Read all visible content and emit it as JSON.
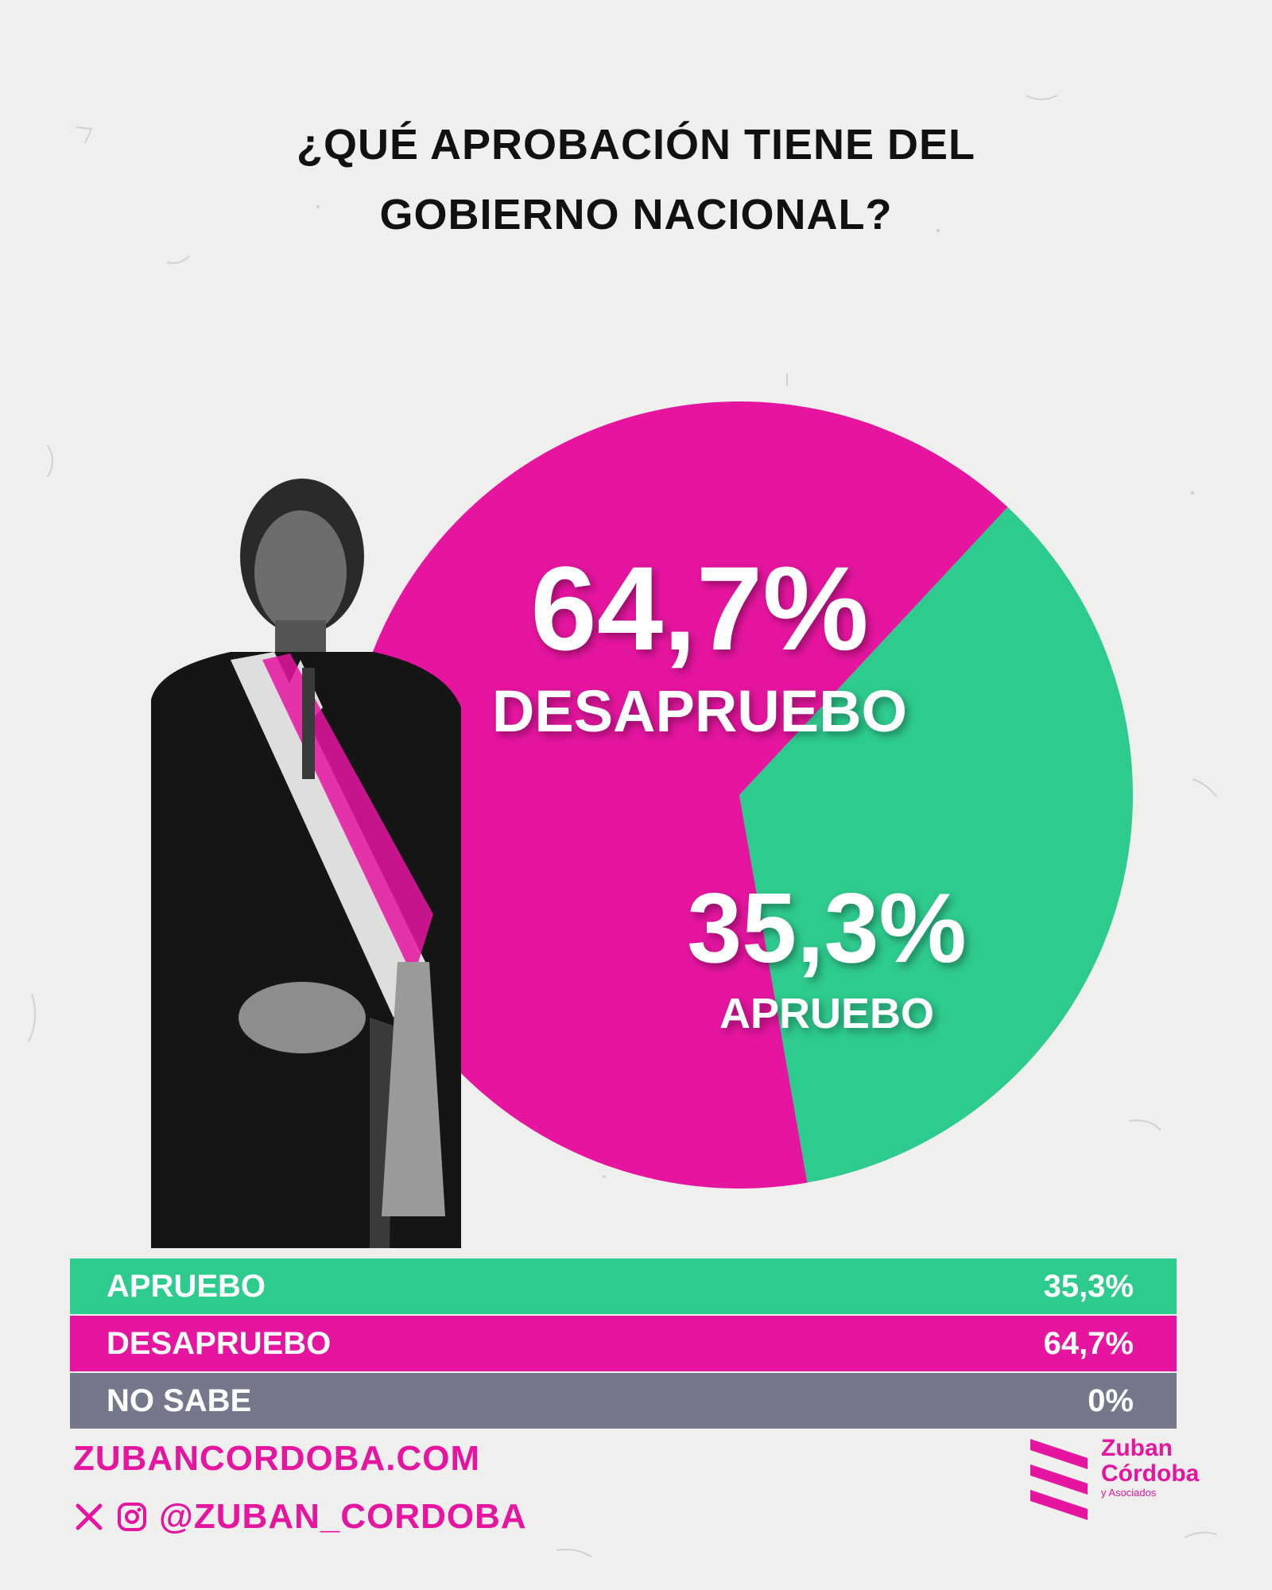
{
  "title_lines": [
    "¿QUÉ APROBACIÓN TIENE DEL",
    "GOBIERNO NACIONAL?"
  ],
  "colors": {
    "desapruebo": "#e5159f",
    "apruebo": "#2ecb8e",
    "no_sabe": "#75778a",
    "background": "#efefed"
  },
  "chart_data": {
    "type": "pie",
    "title": "¿QUÉ APROBACIÓN TIENE DEL GOBIERNO NACIONAL?",
    "categories": [
      "APRUEBO",
      "DESAPRUEBO",
      "NO SABE"
    ],
    "values": [
      35.3,
      64.7,
      0
    ],
    "labels": [
      "35,3%",
      "64,7%",
      "0%"
    ]
  },
  "pie_labels": {
    "desapruebo_pct": "64,7%",
    "desapruebo_label": "DESAPRUEBO",
    "apruebo_pct": "35,3%",
    "apruebo_label": "APRUEBO"
  },
  "table": [
    {
      "label": "APRUEBO",
      "value": "35,3%"
    },
    {
      "label": "DESAPRUEBO",
      "value": "64,7%"
    },
    {
      "label": "NO SABE",
      "value": "0%"
    }
  ],
  "footer": {
    "website": "ZUBANCORDOBA.COM",
    "social_handle": "@ZUBAN_CORDOBA",
    "social_icons": [
      "x-icon",
      "instagram-icon"
    ]
  },
  "logo": {
    "line1": "Zuban",
    "line2": "Córdoba",
    "line3": "y Asociados"
  }
}
